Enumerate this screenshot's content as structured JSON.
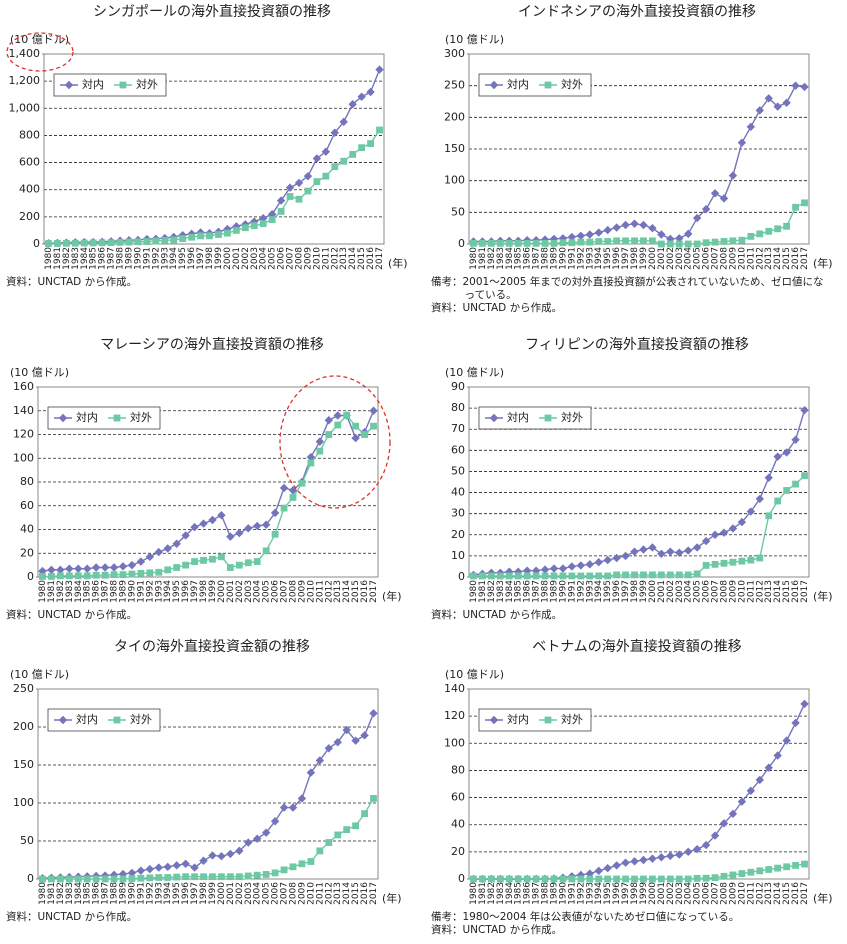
{
  "chart_data": [
    {
      "type": "line",
      "title": "シンガポールの海外直接投資額の推移",
      "y_label": "(10 億ドル)",
      "x_label": "(年)",
      "categories": [
        "1980",
        "1981",
        "1982",
        "1983",
        "1984",
        "1985",
        "1986",
        "1987",
        "1988",
        "1989",
        "1990",
        "1991",
        "1992",
        "1993",
        "1994",
        "1995",
        "1996",
        "1997",
        "1998",
        "1999",
        "2000",
        "2001",
        "2002",
        "2003",
        "2004",
        "2005",
        "2006",
        "2007",
        "2008",
        "2009",
        "2010",
        "2011",
        "2012",
        "2013",
        "2014",
        "2015",
        "2016",
        "2017"
      ],
      "series": [
        {
          "name": "対内",
          "color": "#7474bc",
          "marker": "diamond",
          "values": [
            6,
            8,
            10,
            12,
            14,
            14,
            16,
            20,
            24,
            28,
            30,
            36,
            38,
            44,
            52,
            65,
            75,
            85,
            80,
            90,
            110,
            130,
            145,
            165,
            190,
            220,
            320,
            415,
            450,
            500,
            630,
            680,
            820,
            900,
            1030,
            1085,
            1120,
            1285
          ]
        },
        {
          "name": "対外",
          "color": "#6cc9a4",
          "marker": "square",
          "values": [
            3,
            4,
            5,
            6,
            7,
            8,
            9,
            10,
            12,
            14,
            16,
            18,
            22,
            26,
            30,
            40,
            50,
            60,
            60,
            70,
            80,
            100,
            120,
            135,
            150,
            180,
            240,
            350,
            330,
            390,
            460,
            500,
            570,
            610,
            660,
            710,
            740,
            840
          ]
        }
      ],
      "ylim": [
        0,
        1400
      ],
      "yticks": [
        0,
        200,
        400,
        600,
        800,
        {
          "value": 1000,
          "label": "1,000"
        },
        {
          "value": 1200,
          "label": "1,200"
        },
        {
          "value": 1400,
          "label": "1,400"
        }
      ],
      "grid": true,
      "legend": "upper left",
      "notes": [
        "資料：UNCTAD から作成。"
      ]
    },
    {
      "type": "line",
      "title": "インドネシアの海外直接投資額の推移",
      "y_label": "(10 億ドル)",
      "x_label": "(年)",
      "categories": [
        "1980",
        "1981",
        "1982",
        "1983",
        "1984",
        "1985",
        "1986",
        "1987",
        "1988",
        "1989",
        "1990",
        "1991",
        "1992",
        "1993",
        "1994",
        "1995",
        "1996",
        "1997",
        "1998",
        "1999",
        "2000",
        "2001",
        "2002",
        "2003",
        "2004",
        "2005",
        "2006",
        "2007",
        "2008",
        "2009",
        "2010",
        "2011",
        "2012",
        "2013",
        "2014",
        "2015",
        "2016",
        "2017"
      ],
      "series": [
        {
          "name": "対内",
          "color": "#7474bc",
          "marker": "diamond",
          "values": [
            4,
            4,
            4,
            5,
            5,
            5,
            6,
            6,
            7,
            8,
            9,
            11,
            13,
            15,
            18,
            22,
            26,
            30,
            32,
            30,
            25,
            15,
            8,
            9,
            16,
            41,
            55,
            80,
            72,
            108,
            160,
            185,
            211,
            230,
            217,
            223,
            250,
            248
          ]
        },
        {
          "name": "対外",
          "color": "#6cc9a4",
          "marker": "square",
          "values": [
            1,
            1,
            1,
            1,
            1,
            1,
            1,
            1,
            1,
            1,
            2,
            2,
            3,
            3,
            4,
            4,
            5,
            5,
            5,
            5,
            5,
            0,
            0,
            0,
            0,
            0,
            2,
            3,
            4,
            5,
            6,
            12,
            16,
            20,
            24,
            28,
            58,
            65
          ]
        }
      ],
      "ylim": [
        0,
        300
      ],
      "yticks": [
        0,
        50,
        100,
        150,
        200,
        250,
        300
      ],
      "grid": true,
      "legend": "upper left",
      "notes": [
        "備考：2001～2005 年までの対外直接投資額が公表されていないため、ゼロ値になっている。",
        "資料：UNCTAD から作成。"
      ]
    },
    {
      "type": "line",
      "title": "マレーシアの海外直接投資額の推移",
      "y_label": "(10 億ドル)",
      "x_label": "(年)",
      "categories": [
        "1980",
        "1981",
        "1982",
        "1983",
        "1984",
        "1985",
        "1986",
        "1987",
        "1988",
        "1989",
        "1990",
        "1991",
        "1992",
        "1993",
        "1994",
        "1995",
        "1996",
        "1997",
        "1998",
        "1999",
        "2000",
        "2001",
        "2002",
        "2003",
        "2004",
        "2005",
        "2006",
        "2007",
        "2008",
        "2009",
        "2010",
        "2011",
        "2012",
        "2013",
        "2014",
        "2015",
        "2016",
        "2017"
      ],
      "series": [
        {
          "name": "対内",
          "color": "#7474bc",
          "marker": "diamond",
          "values": [
            5,
            6,
            6,
            7,
            7,
            7,
            8,
            8,
            8,
            9,
            10,
            13,
            17,
            21,
            24,
            28,
            35,
            42,
            45,
            48,
            52,
            34,
            37,
            41,
            43,
            44,
            54,
            75,
            73,
            80,
            101,
            114,
            132,
            136,
            136,
            117,
            122,
            140
          ]
        },
        {
          "name": "対外",
          "color": "#6cc9a4",
          "marker": "square",
          "values": [
            0.5,
            0.5,
            1,
            1,
            1,
            1,
            1.5,
            1.5,
            2,
            2,
            2.5,
            3,
            3.5,
            4,
            6,
            8,
            10,
            13,
            14,
            15,
            17,
            8,
            10,
            12,
            13,
            22,
            36,
            58,
            67,
            79,
            96,
            106,
            120,
            128,
            136,
            127,
            120,
            127
          ]
        }
      ],
      "ylim": [
        0,
        160
      ],
      "yticks": [
        0,
        20,
        40,
        60,
        80,
        100,
        120,
        140,
        160
      ],
      "grid": true,
      "legend": "upper left",
      "notes": [
        "資料：UNCTAD から作成。"
      ]
    },
    {
      "type": "line",
      "title": "フィリピンの海外直接投資額の推移",
      "y_label": "(10 億ドル)",
      "x_label": "(年)",
      "categories": [
        "1980",
        "1981",
        "1982",
        "1983",
        "1984",
        "1985",
        "1986",
        "1987",
        "1988",
        "1989",
        "1990",
        "1991",
        "1992",
        "1993",
        "1994",
        "1995",
        "1996",
        "1997",
        "1998",
        "1999",
        "2000",
        "2001",
        "2002",
        "2003",
        "2004",
        "2005",
        "2006",
        "2007",
        "2008",
        "2009",
        "2010",
        "2011",
        "2012",
        "2013",
        "2014",
        "2015",
        "2016",
        "2017"
      ],
      "series": [
        {
          "name": "対内",
          "color": "#7474bc",
          "marker": "diamond",
          "values": [
            1,
            1.5,
            2,
            2,
            2.5,
            2.5,
            3,
            3,
            3.5,
            4,
            4,
            5,
            5.5,
            6,
            7,
            8,
            9,
            10,
            12,
            13,
            14,
            11,
            12,
            11.5,
            12.5,
            14,
            17,
            20,
            21,
            23,
            26,
            31,
            37,
            47,
            57,
            59,
            65,
            79
          ]
        },
        {
          "name": "対外",
          "color": "#6cc9a4",
          "marker": "square",
          "values": [
            0.5,
            0.5,
            0.5,
            0.5,
            0.5,
            0.5,
            0.5,
            0.5,
            0.5,
            0.5,
            0.5,
            0.5,
            0.5,
            0.5,
            0.5,
            0.5,
            1,
            1,
            1,
            1,
            1,
            1,
            1,
            1,
            1,
            1.5,
            5.5,
            6,
            6.5,
            7,
            7.5,
            8,
            9,
            29,
            36,
            41,
            44,
            48
          ]
        }
      ],
      "ylim": [
        0,
        90
      ],
      "yticks": [
        0,
        10,
        20,
        30,
        40,
        50,
        60,
        70,
        80,
        90
      ],
      "grid": true,
      "legend": "upper left",
      "notes": [
        "資料：UNCTAD から作成。"
      ]
    },
    {
      "type": "line",
      "title": "タイの海外直接投資金額の推移",
      "y_label": "(10 億ドル)",
      "x_label": "(年)",
      "categories": [
        "1980",
        "1981",
        "1982",
        "1983",
        "1984",
        "1985",
        "1986",
        "1987",
        "1988",
        "1989",
        "1990",
        "1991",
        "1992",
        "1993",
        "1994",
        "1995",
        "1996",
        "1997",
        "1998",
        "1999",
        "2000",
        "2001",
        "2002",
        "2003",
        "2004",
        "2005",
        "2006",
        "2007",
        "2008",
        "2009",
        "2010",
        "2011",
        "2012",
        "2013",
        "2014",
        "2015",
        "2016",
        "2017"
      ],
      "series": [
        {
          "name": "対内",
          "color": "#7474bc",
          "marker": "diamond",
          "values": [
            1,
            1.5,
            2,
            2.5,
            3,
            3.5,
            4,
            4.5,
            5.5,
            6.5,
            8,
            11,
            13,
            15,
            16,
            18,
            20,
            15,
            24,
            31,
            30,
            33,
            37,
            48,
            53,
            61,
            76,
            94,
            94,
            106,
            140,
            156,
            172,
            180,
            196,
            182,
            189,
            218
          ]
        },
        {
          "name": "対外",
          "color": "#6cc9a4",
          "marker": "square",
          "values": [
            0,
            0,
            0,
            0,
            0,
            0,
            0,
            0,
            0,
            0,
            0.5,
            1,
            1.5,
            2,
            2,
            2.5,
            3,
            3,
            3,
            3,
            3,
            3,
            3,
            4,
            5,
            6,
            8,
            12,
            16,
            20,
            23,
            37,
            48,
            58,
            65,
            70,
            86,
            106
          ]
        }
      ],
      "ylim": [
        0,
        250
      ],
      "yticks": [
        0,
        50,
        100,
        150,
        200,
        250
      ],
      "grid": true,
      "legend": "upper left",
      "notes": [
        "資料：UNCTAD から作成。"
      ]
    },
    {
      "type": "line",
      "title": "ベトナムの海外直接投資額の推移",
      "y_label": "(10 億ドル)",
      "x_label": "(年)",
      "categories": [
        "1980",
        "1981",
        "1982",
        "1983",
        "1984",
        "1985",
        "1986",
        "1987",
        "1988",
        "1989",
        "1990",
        "1991",
        "1992",
        "1993",
        "1994",
        "1995",
        "1996",
        "1997",
        "1998",
        "1999",
        "2000",
        "2001",
        "2002",
        "2003",
        "2004",
        "2005",
        "2006",
        "2007",
        "2008",
        "2009",
        "2010",
        "2011",
        "2012",
        "2013",
        "2014",
        "2015",
        "2016",
        "2017"
      ],
      "series": [
        {
          "name": "対内",
          "color": "#7474bc",
          "marker": "diamond",
          "values": [
            0,
            0,
            0,
            0,
            0,
            0,
            0,
            0,
            0.1,
            0.3,
            1,
            2,
            3,
            4,
            6,
            8,
            10,
            12,
            13,
            14,
            15,
            16,
            17,
            18,
            20,
            22,
            25,
            32,
            41,
            48,
            57,
            65,
            73,
            82,
            91,
            102,
            115,
            129
          ]
        },
        {
          "name": "対外",
          "color": "#6cc9a4",
          "marker": "square",
          "values": [
            0,
            0,
            0,
            0,
            0,
            0,
            0,
            0,
            0,
            0,
            0,
            0,
            0,
            0,
            0,
            0,
            0,
            0,
            0,
            0,
            0,
            0,
            0,
            0,
            0,
            0.5,
            0.6,
            1,
            2,
            3,
            4,
            5,
            6,
            7,
            8,
            9,
            10,
            11
          ]
        }
      ],
      "ylim": [
        0,
        140
      ],
      "yticks": [
        0,
        20,
        40,
        60,
        80,
        100,
        120,
        140
      ],
      "grid": true,
      "legend": "upper left",
      "notes": [
        "備考：1980～2004 年は公表値がないためゼロ値になっている。",
        "資料：UNCTAD から作成。"
      ]
    }
  ]
}
